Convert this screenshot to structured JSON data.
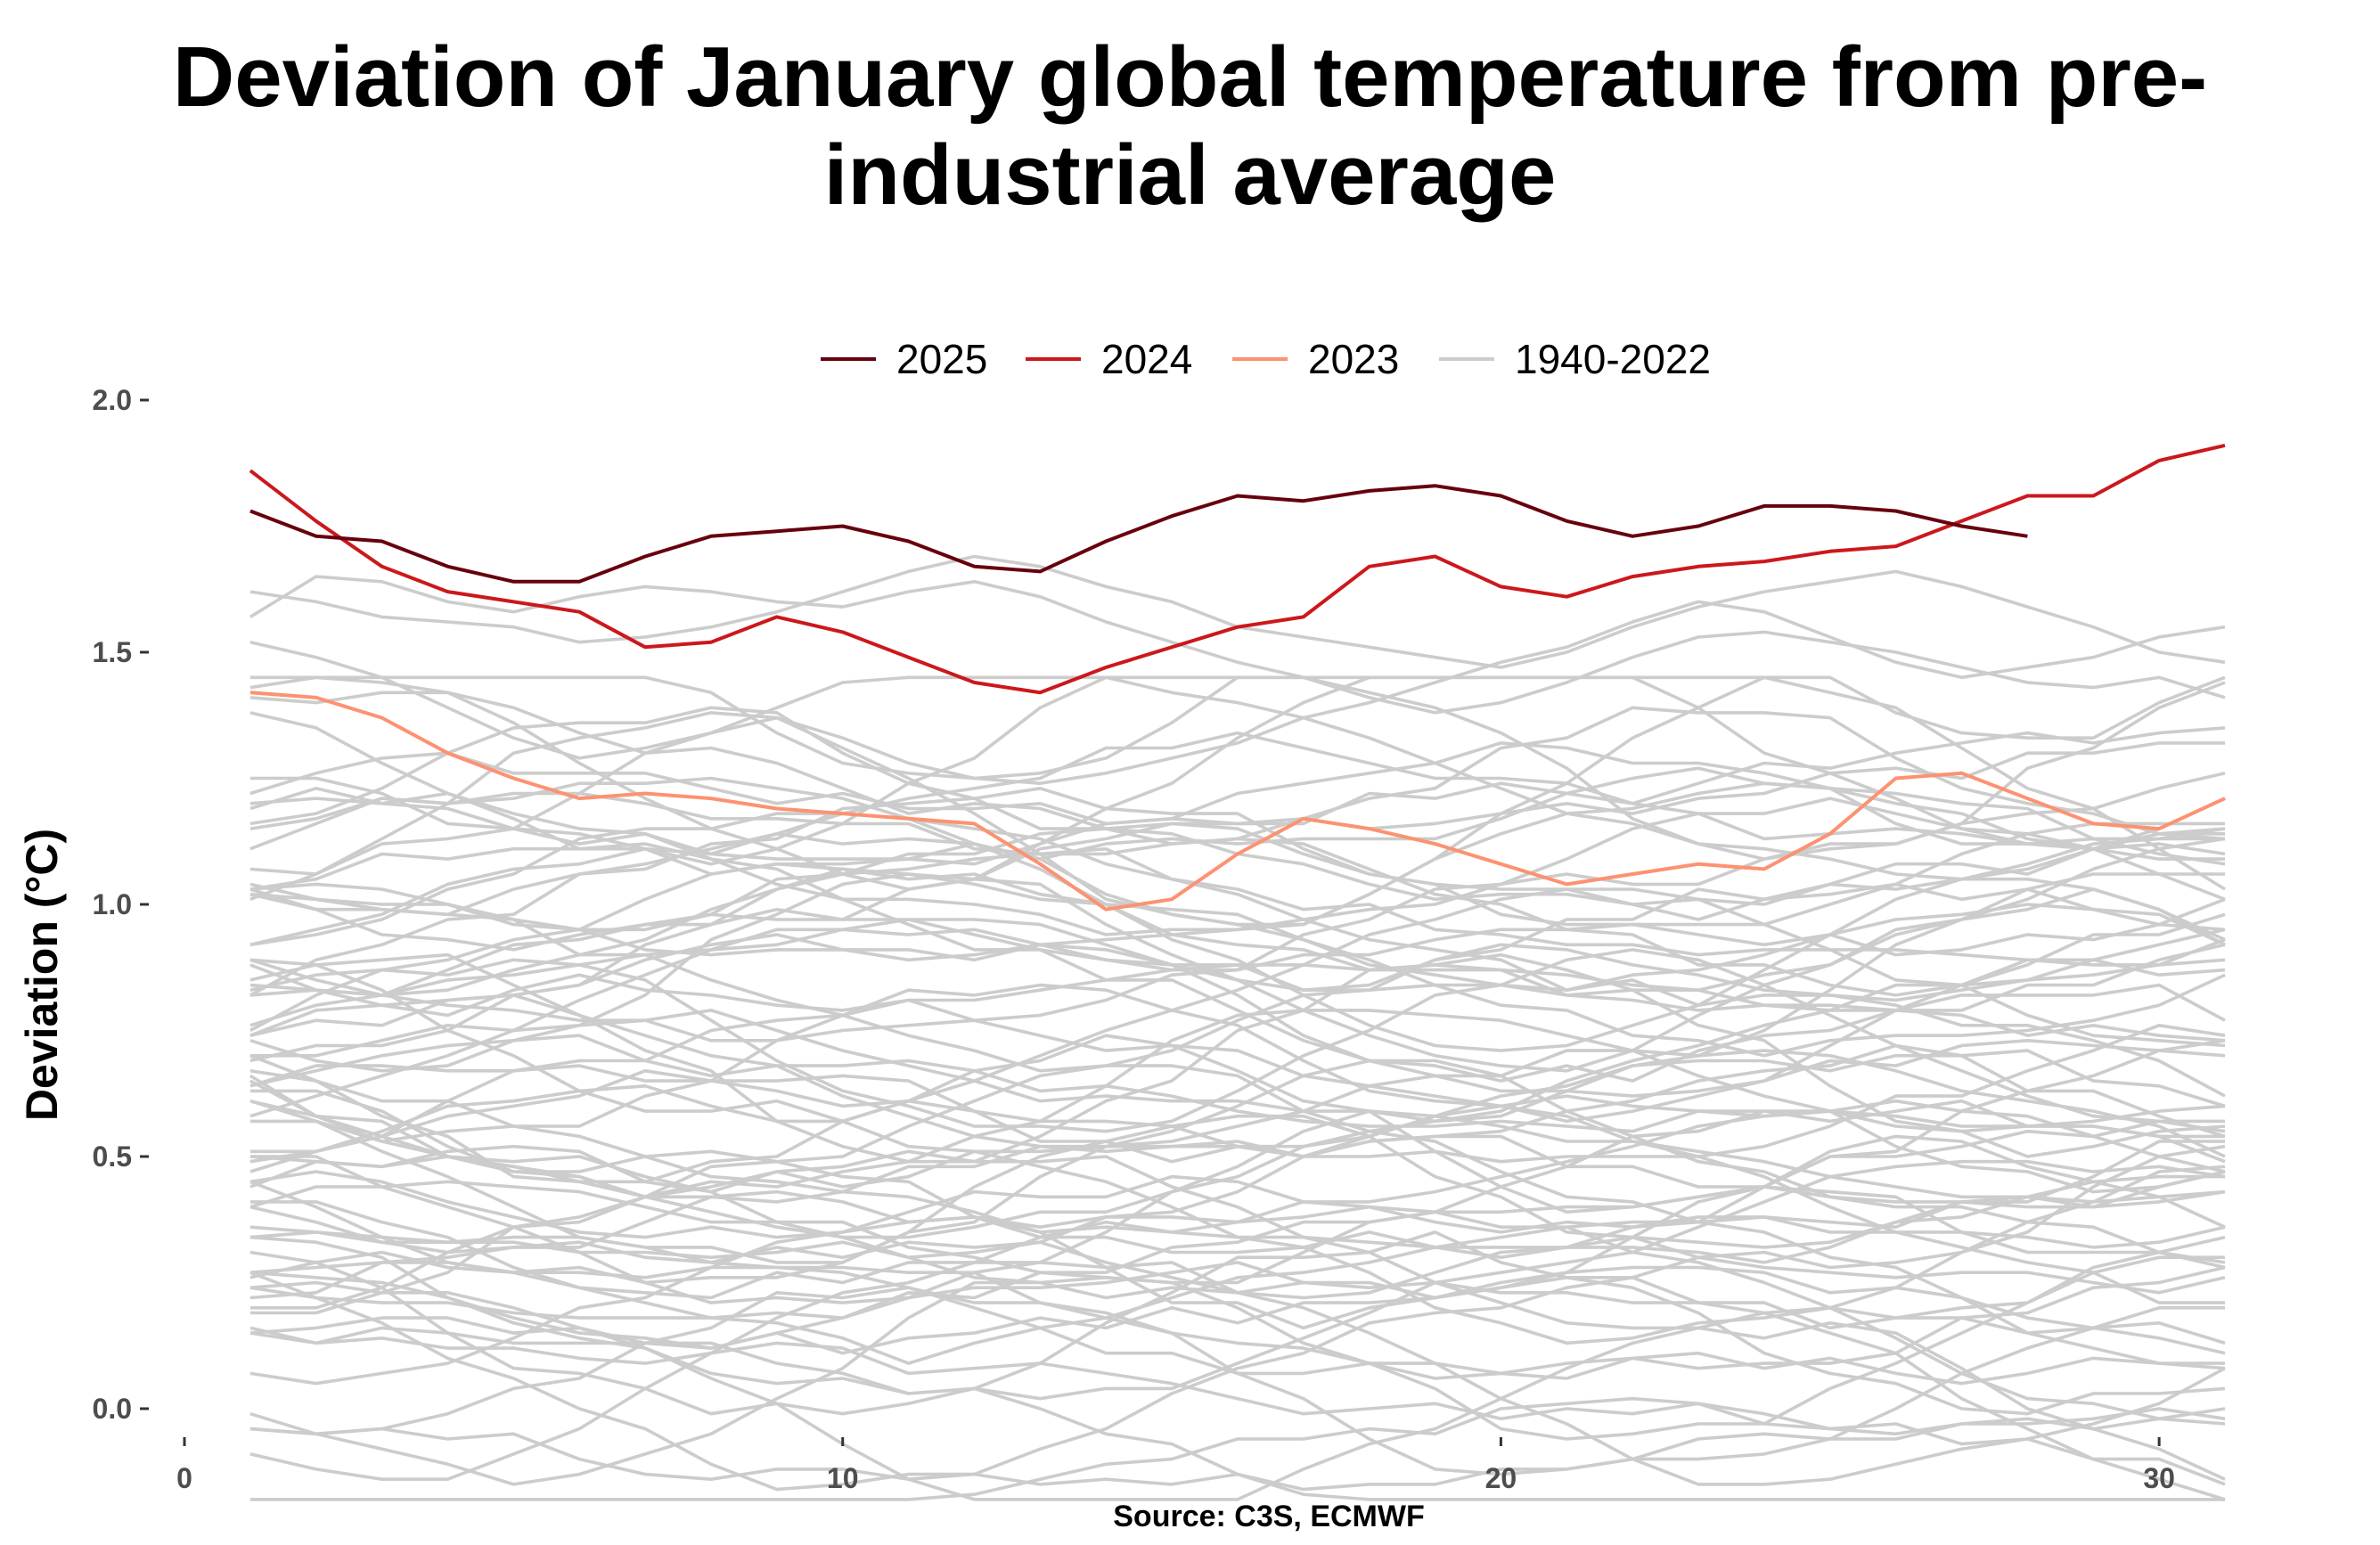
{
  "chart_data": {
    "type": "line",
    "title_lines": [
      "Deviation of January global temperature from pre-",
      "industrial average"
    ],
    "xlabel": "Source: C3S, ECMWF",
    "ylabel": "Deviation (°C)",
    "xlim": [
      0,
      31
    ],
    "ylim": [
      -0.25,
      2.0
    ],
    "x_ticks": [
      0,
      10,
      20,
      30
    ],
    "y_ticks": [
      0.0,
      0.5,
      1.0,
      1.5,
      2.0
    ],
    "y_tick_labels": [
      "0.0",
      "0.5",
      "1.0",
      "1.5",
      "2.0"
    ],
    "grid": false,
    "legend_position": "top",
    "legend": [
      {
        "label": "2025",
        "color": "#67000d"
      },
      {
        "label": "2024",
        "color": "#cb181d"
      },
      {
        "label": "2023",
        "color": "#fc9272"
      },
      {
        "label": "1940-2022",
        "color": "#cccccc"
      }
    ],
    "series": [
      {
        "name": "2025",
        "color": "#67000d",
        "x_start": 1,
        "values": [
          1.78,
          1.73,
          1.72,
          1.67,
          1.64,
          1.64,
          1.69,
          1.73,
          1.74,
          1.75,
          1.72,
          1.67,
          1.66,
          1.72,
          1.77,
          1.81,
          1.8,
          1.82,
          1.83,
          1.81,
          1.76,
          1.73,
          1.75,
          1.79,
          1.79,
          1.78,
          1.75,
          1.73
        ]
      },
      {
        "name": "2024",
        "color": "#cb181d",
        "x_start": 1,
        "values": [
          1.86,
          1.76,
          1.67,
          1.62,
          1.6,
          1.58,
          1.51,
          1.52,
          1.57,
          1.54,
          1.49,
          1.44,
          1.42,
          1.47,
          1.51,
          1.55,
          1.57,
          1.67,
          1.69,
          1.63,
          1.61,
          1.65,
          1.67,
          1.68,
          1.7,
          1.71,
          1.76,
          1.81,
          1.81,
          1.88,
          1.91
        ]
      },
      {
        "name": "2023",
        "color": "#fc9272",
        "x_start": 1,
        "values": [
          1.42,
          1.41,
          1.37,
          1.3,
          1.25,
          1.21,
          1.22,
          1.21,
          1.19,
          1.18,
          1.17,
          1.16,
          1.08,
          0.99,
          1.01,
          1.1,
          1.17,
          1.15,
          1.12,
          1.08,
          1.04,
          1.06,
          1.08,
          1.07,
          1.14,
          1.25,
          1.26,
          1.21,
          1.16,
          1.15,
          1.21
        ]
      }
    ],
    "background_series": {
      "name": "1940-2022",
      "color": "#cccccc",
      "count": 83,
      "x_start": 1,
      "values": [
        [
          1.62,
          1.6,
          1.57,
          1.56,
          1.55,
          1.52,
          1.53,
          1.55,
          1.58,
          1.62,
          1.66,
          1.69,
          1.67,
          1.63,
          1.6,
          1.55,
          1.53,
          1.51,
          1.49,
          1.47,
          1.5,
          1.55,
          1.59,
          1.62,
          1.64,
          1.66,
          1.63,
          1.59,
          1.55,
          1.5,
          1.48
        ],
        [
          1.52,
          1.49,
          1.45,
          1.39,
          1.33,
          1.29,
          1.31,
          1.34,
          1.37,
          1.33,
          1.28,
          1.25,
          1.24,
          1.26,
          1.29,
          1.32,
          1.37,
          1.4,
          1.44,
          1.48,
          1.51,
          1.56,
          1.6,
          1.58,
          1.53,
          1.48,
          1.45,
          1.47,
          1.49,
          1.53,
          1.55
        ],
        [
          1.57,
          1.65,
          1.64,
          1.6,
          1.58,
          1.61,
          1.63,
          1.62,
          1.6,
          1.59,
          1.62,
          1.64,
          1.61,
          1.56,
          1.52,
          1.48,
          1.45,
          1.41,
          1.38,
          1.4,
          1.44,
          1.49,
          1.53,
          1.54,
          1.52,
          1.5,
          1.47,
          1.44,
          1.43,
          1.45,
          1.41
        ]
      ],
      "generator": {
        "seed": 20240117,
        "low": -0.18,
        "high": 1.45
      }
    }
  }
}
